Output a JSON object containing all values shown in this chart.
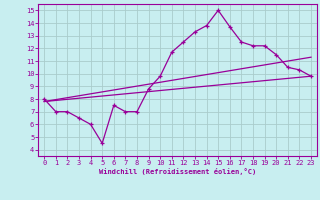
{
  "xlabel": "Windchill (Refroidissement éolien,°C)",
  "bg_color": "#c8eef0",
  "grid_color": "#aacccc",
  "line_color": "#990099",
  "xlim": [
    -0.5,
    23.5
  ],
  "ylim": [
    3.5,
    15.5
  ],
  "xticks": [
    0,
    1,
    2,
    3,
    4,
    5,
    6,
    7,
    8,
    9,
    10,
    11,
    12,
    13,
    14,
    15,
    16,
    17,
    18,
    19,
    20,
    21,
    22,
    23
  ],
  "yticks": [
    4,
    5,
    6,
    7,
    8,
    9,
    10,
    11,
    12,
    13,
    14,
    15
  ],
  "line1_x": [
    0,
    1,
    2,
    3,
    4,
    5,
    6,
    7,
    8,
    9,
    10,
    11,
    12,
    13,
    14,
    15,
    16,
    17,
    18,
    19,
    20,
    21,
    22,
    23
  ],
  "line1_y": [
    8.0,
    7.0,
    7.0,
    6.5,
    6.0,
    4.5,
    7.5,
    7.0,
    7.0,
    8.8,
    9.8,
    11.7,
    12.5,
    13.3,
    13.8,
    15.0,
    13.7,
    12.5,
    12.2,
    12.2,
    11.5,
    10.5,
    10.3,
    9.8
  ],
  "line2_x": [
    0,
    23
  ],
  "line2_y": [
    7.8,
    9.8
  ],
  "line3_x": [
    0,
    23
  ],
  "line3_y": [
    7.8,
    11.3
  ],
  "xlabel_fontsize": 5,
  "tick_fontsize": 5
}
